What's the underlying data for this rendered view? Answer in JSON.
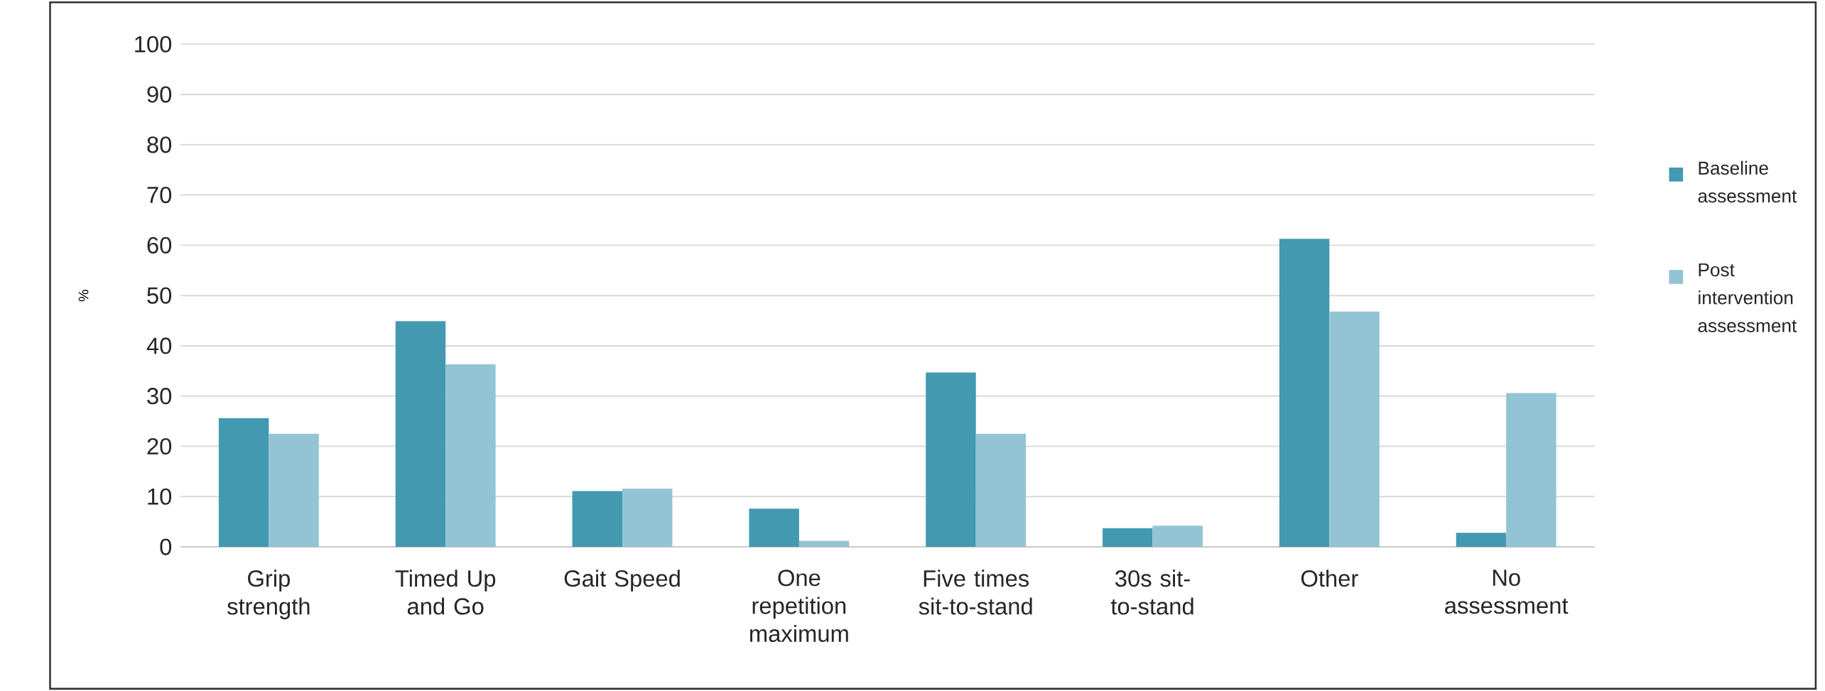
{
  "chart_data": {
    "type": "bar",
    "ylabel": "%",
    "categories": [
      "Grip strength",
      "Timed Up and Go",
      "Gait Speed",
      "One repetition maximum",
      "Five times sit-to-stand",
      "30s sit-to-stand",
      "Other",
      "No assessment"
    ],
    "series": [
      {
        "name": "Baseline assessment",
        "color": "#4299b0",
        "values": [
          25.6,
          44.9,
          11.1,
          7.6,
          34.7,
          3.7,
          61.3,
          2.8
        ]
      },
      {
        "name": "Post intervention assessment",
        "color": "#93c4d5",
        "values": [
          22.5,
          36.3,
          11.6,
          1.2,
          22.5,
          4.2,
          46.8,
          30.6
        ]
      }
    ],
    "ylim": [
      0,
      100
    ],
    "yticks": [
      0,
      10,
      20,
      30,
      40,
      50,
      60,
      70,
      80,
      90,
      100
    ],
    "grid": "y",
    "legend": "right"
  }
}
